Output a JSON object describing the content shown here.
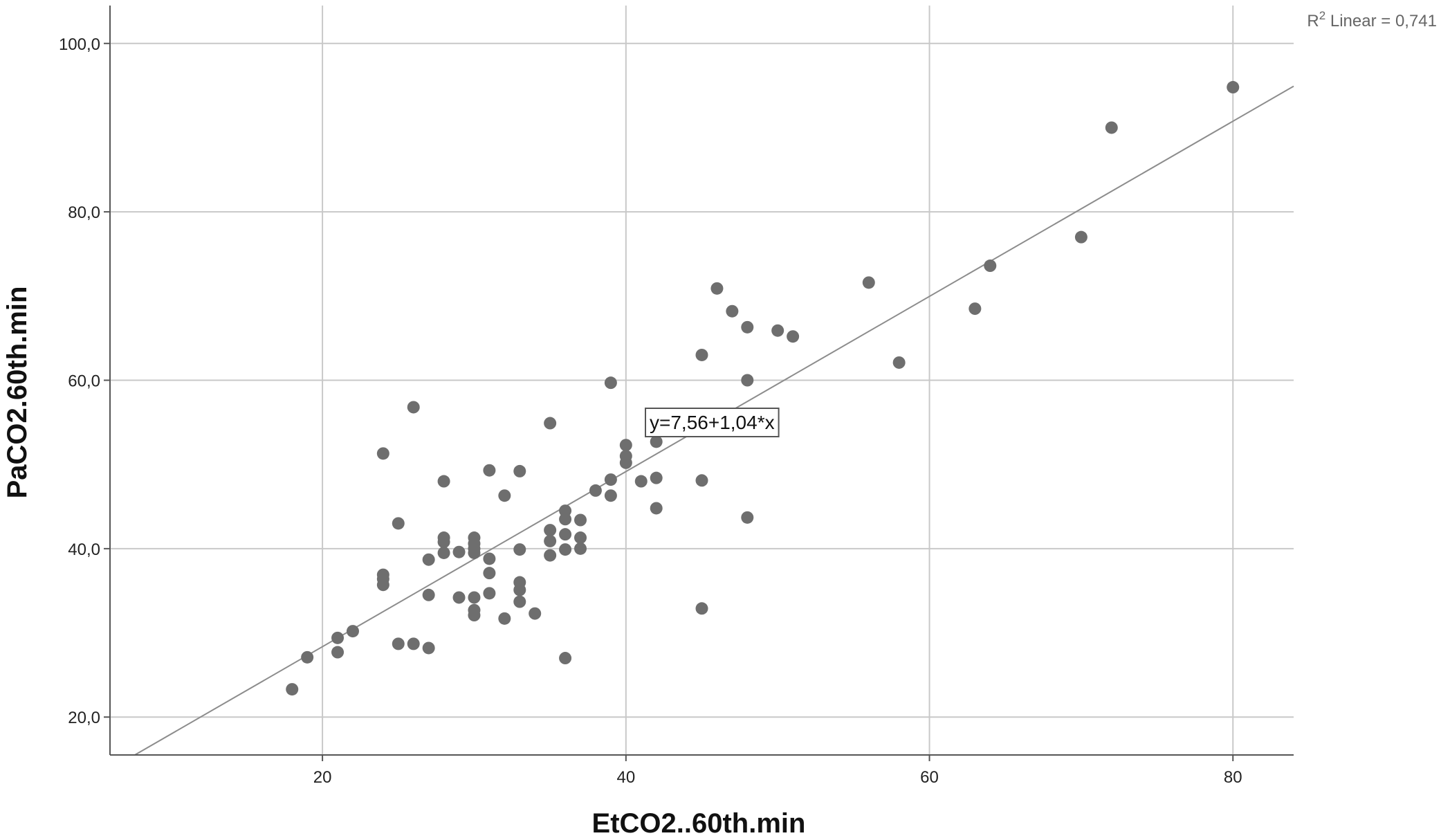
{
  "chart_data": {
    "type": "scatter",
    "title": "",
    "xlabel": "EtCO2..60th.min",
    "ylabel": "PaCO2.60th.min",
    "xlim": [
      6,
      84
    ],
    "ylim": [
      15.5,
      104.5
    ],
    "x_ticks": [
      20,
      40,
      60,
      80
    ],
    "x_tick_labels": [
      "20",
      "40",
      "60",
      "80"
    ],
    "y_ticks": [
      20,
      40,
      60,
      80,
      100
    ],
    "y_tick_labels": [
      "20,0",
      "40,0",
      "60,0",
      "80,0",
      "100,0"
    ],
    "grid": true,
    "colors": {
      "point": "#6e6e6e",
      "line": "#8c8c8c",
      "grid": "#c8c8c8",
      "axis": "#555555"
    },
    "fit_line": {
      "intercept": 7.56,
      "slope": 1.04,
      "label": "y=7,56+1,04*x"
    },
    "r2_prefix": "R",
    "r2_sup": "2",
    "r2_suffix": " Linear = 0,741",
    "points": [
      [
        18,
        23.3
      ],
      [
        19,
        27.1
      ],
      [
        21,
        27.7
      ],
      [
        21,
        29.4
      ],
      [
        22,
        30.2
      ],
      [
        24,
        51.3
      ],
      [
        24,
        35.7
      ],
      [
        24,
        36.4
      ],
      [
        24,
        36.9
      ],
      [
        25,
        43.0
      ],
      [
        25,
        28.7
      ],
      [
        26,
        56.8
      ],
      [
        26,
        28.7
      ],
      [
        27,
        28.2
      ],
      [
        27,
        34.5
      ],
      [
        27,
        38.7
      ],
      [
        28,
        48.0
      ],
      [
        28,
        41.3
      ],
      [
        28,
        40.8
      ],
      [
        28,
        39.5
      ],
      [
        29,
        39.6
      ],
      [
        29,
        34.2
      ],
      [
        30,
        41.3
      ],
      [
        30,
        40.6
      ],
      [
        30,
        40.0
      ],
      [
        30,
        39.5
      ],
      [
        30,
        34.2
      ],
      [
        30,
        32.7
      ],
      [
        30,
        32.1
      ],
      [
        31,
        49.3
      ],
      [
        31,
        38.8
      ],
      [
        31,
        37.1
      ],
      [
        31,
        34.7
      ],
      [
        32,
        46.3
      ],
      [
        32,
        31.7
      ],
      [
        33,
        49.2
      ],
      [
        33,
        39.9
      ],
      [
        33,
        36.0
      ],
      [
        33,
        35.1
      ],
      [
        33,
        33.7
      ],
      [
        34,
        32.3
      ],
      [
        35,
        54.9
      ],
      [
        35,
        42.2
      ],
      [
        35,
        40.9
      ],
      [
        35,
        39.2
      ],
      [
        36,
        44.5
      ],
      [
        36,
        43.5
      ],
      [
        36,
        41.7
      ],
      [
        36,
        39.9
      ],
      [
        36,
        27.0
      ],
      [
        37,
        43.4
      ],
      [
        37,
        41.3
      ],
      [
        37,
        40.0
      ],
      [
        38,
        46.9
      ],
      [
        39,
        59.7
      ],
      [
        39,
        48.2
      ],
      [
        39,
        46.3
      ],
      [
        40,
        52.3
      ],
      [
        40,
        51.0
      ],
      [
        40,
        50.2
      ],
      [
        41,
        48.0
      ],
      [
        42,
        52.7
      ],
      [
        42,
        48.4
      ],
      [
        42,
        44.8
      ],
      [
        45,
        63.0
      ],
      [
        45,
        48.1
      ],
      [
        45,
        32.9
      ],
      [
        46,
        70.9
      ],
      [
        47,
        68.2
      ],
      [
        48,
        66.3
      ],
      [
        48,
        60.0
      ],
      [
        48,
        43.7
      ],
      [
        50,
        65.9
      ],
      [
        51,
        65.2
      ],
      [
        56,
        71.6
      ],
      [
        58,
        62.1
      ],
      [
        63,
        68.5
      ],
      [
        64,
        73.6
      ],
      [
        70,
        77.0
      ],
      [
        72,
        90.0
      ],
      [
        80,
        94.8
      ]
    ]
  }
}
